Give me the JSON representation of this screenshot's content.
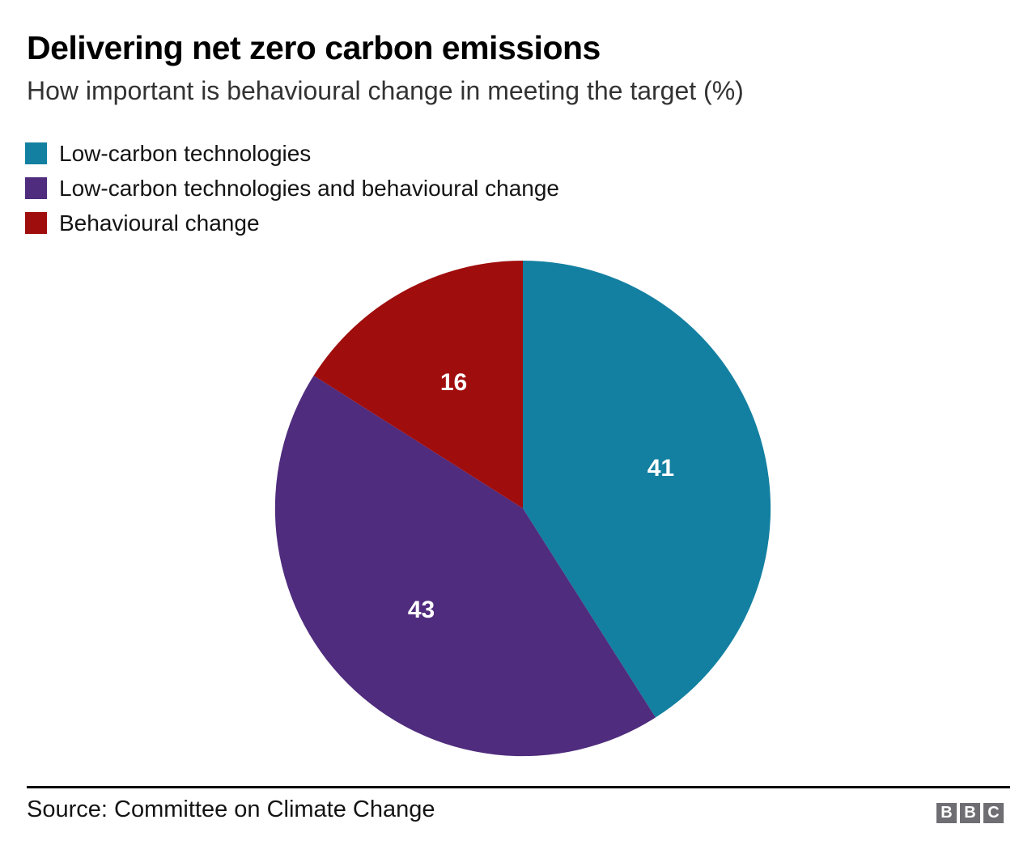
{
  "page": {
    "background": "#ffffff"
  },
  "header": {
    "title": "Delivering net zero carbon emissions",
    "subtitle": "How important is behavioural change in meeting the target (%)"
  },
  "legend": {
    "items": [
      {
        "label": "Low-carbon technologies",
        "color": "#1380a1"
      },
      {
        "label": "Low-carbon technologies and behavioural change",
        "color": "#4f2c7d"
      },
      {
        "label": "Behavioural change",
        "color": "#a00d0d"
      }
    ]
  },
  "chart_data": {
    "type": "pie",
    "title": "Delivering net zero carbon emissions",
    "subtitle": "How important is behavioural change in meeting the target (%)",
    "labels": [
      "Low-carbon technologies",
      "Low-carbon technologies and behavioural change",
      "Behavioural change"
    ],
    "values": [
      41,
      43,
      16
    ],
    "colors": [
      "#1380a1",
      "#4f2c7d",
      "#a00d0d"
    ],
    "value_label_color": "#ffffff",
    "start_angle_deg": 0,
    "direction": "clockwise",
    "legend_position": "top-left",
    "units": "%"
  },
  "footer": {
    "source": "Source: Committee on Climate Change",
    "logo": {
      "letters": [
        "B",
        "B",
        "C"
      ],
      "color": "#6e6e73"
    }
  }
}
